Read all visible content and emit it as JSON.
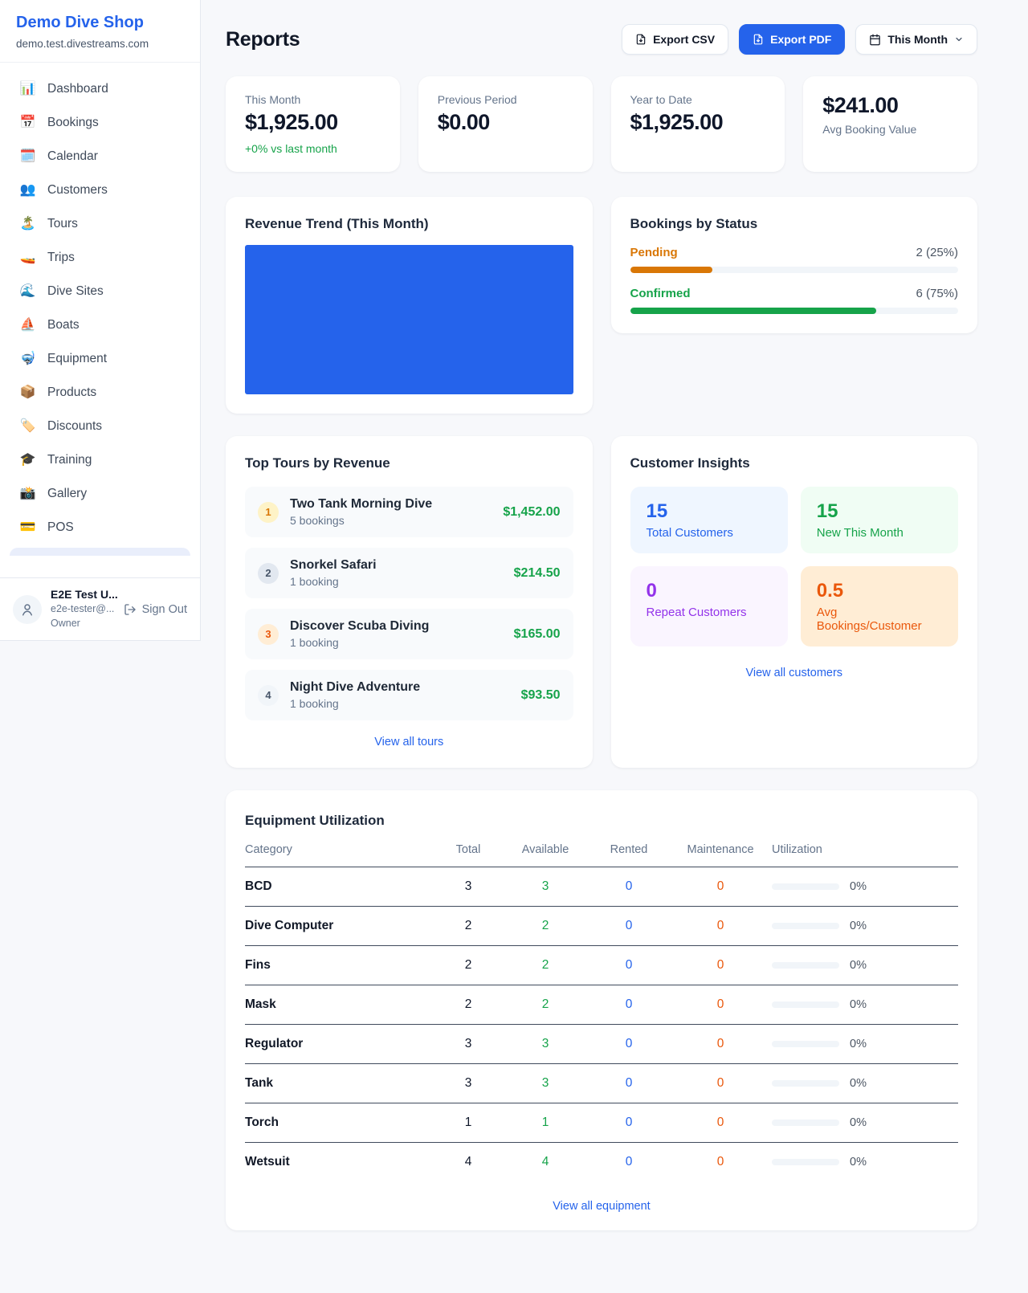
{
  "colors": {
    "accent": "#2563eb",
    "green": "#16a34a",
    "amber": "#d97706",
    "deep_orange": "#ea580c",
    "purple": "#9333ea"
  },
  "sidebar": {
    "brand_title": "Demo Dive Shop",
    "brand_subtitle": "demo.test.divestreams.com",
    "items": [
      {
        "icon": "📊",
        "label": "Dashboard"
      },
      {
        "icon": "📅",
        "label": "Bookings"
      },
      {
        "icon": "🗓️",
        "label": "Calendar"
      },
      {
        "icon": "👥",
        "label": "Customers"
      },
      {
        "icon": "🏝️",
        "label": "Tours"
      },
      {
        "icon": "🚤",
        "label": "Trips"
      },
      {
        "icon": "🌊",
        "label": "Dive Sites"
      },
      {
        "icon": "⛵",
        "label": "Boats"
      },
      {
        "icon": "🤿",
        "label": "Equipment"
      },
      {
        "icon": "📦",
        "label": "Products"
      },
      {
        "icon": "🏷️",
        "label": "Discounts"
      },
      {
        "icon": "🎓",
        "label": "Training"
      },
      {
        "icon": "📸",
        "label": "Gallery"
      },
      {
        "icon": "💳",
        "label": "POS"
      }
    ],
    "user": {
      "name": "E2E Test U...",
      "email": "e2e-tester@...",
      "role": "Owner",
      "sign_out": "Sign Out"
    }
  },
  "header": {
    "title": "Reports",
    "export_csv": "Export CSV",
    "export_pdf": "Export PDF",
    "period": "This Month"
  },
  "stats": {
    "this_month": {
      "label": "This Month",
      "value": "$1,925.00",
      "delta": "+0% vs last month"
    },
    "previous_period": {
      "label": "Previous Period",
      "value": "$0.00"
    },
    "year_to_date": {
      "label": "Year to Date",
      "value": "$1,925.00"
    },
    "avg_booking": {
      "value": "$241.00",
      "label": "Avg Booking Value"
    }
  },
  "revenue_trend": {
    "title": "Revenue Trend (This Month)",
    "bar_color": "#2563eb",
    "fill_pct": 100
  },
  "bookings_by_status": {
    "title": "Bookings by Status",
    "rows": [
      {
        "label": "Pending",
        "value_text": "2 (25%)",
        "pct": 25,
        "color": "#d97706"
      },
      {
        "label": "Confirmed",
        "value_text": "6 (75%)",
        "pct": 75,
        "color": "#16a34a"
      }
    ]
  },
  "top_tours": {
    "title": "Top Tours by Revenue",
    "rows": [
      {
        "rank": "1",
        "name": "Two Tank Morning Dive",
        "bookings": "5 bookings",
        "revenue": "$1,452.00",
        "badge_bg": "#fef3c7",
        "badge_color": "#d97706"
      },
      {
        "rank": "2",
        "name": "Snorkel Safari",
        "bookings": "1 booking",
        "revenue": "$214.50",
        "badge_bg": "#e2e8f0",
        "badge_color": "#475569"
      },
      {
        "rank": "3",
        "name": "Discover Scuba Diving",
        "bookings": "1 booking",
        "revenue": "$165.00",
        "badge_bg": "#ffedd5",
        "badge_color": "#ea580c"
      },
      {
        "rank": "4",
        "name": "Night Dive Adventure",
        "bookings": "1 booking",
        "revenue": "$93.50",
        "badge_bg": "#f1f5f9",
        "badge_color": "#475569"
      }
    ],
    "view_all": "View all tours"
  },
  "customer_insights": {
    "title": "Customer Insights",
    "tiles": [
      {
        "value": "15",
        "label": "Total Customers",
        "bg": "#eff6ff",
        "color": "#2563eb"
      },
      {
        "value": "15",
        "label": "New This Month",
        "bg": "#f0fdf4",
        "color": "#16a34a"
      },
      {
        "value": "0",
        "label": "Repeat Customers",
        "bg": "#faf5ff",
        "color": "#9333ea"
      },
      {
        "value": "0.5",
        "label": "Avg Bookings/Customer",
        "bg": "#ffedd5",
        "color": "#ea580c"
      }
    ],
    "view_all": "View all customers"
  },
  "equipment": {
    "title": "Equipment Utilization",
    "columns": [
      "Category",
      "Total",
      "Available",
      "Rented",
      "Maintenance",
      "Utilization"
    ],
    "colors": {
      "available": "#16a34a",
      "rented": "#2563eb",
      "maintenance": "#ea580c"
    },
    "rows": [
      {
        "category": "BCD",
        "total": "3",
        "available": "3",
        "rented": "0",
        "maintenance": "0",
        "utilization_pct": 0,
        "utilization": "0%"
      },
      {
        "category": "Dive Computer",
        "total": "2",
        "available": "2",
        "rented": "0",
        "maintenance": "0",
        "utilization_pct": 0,
        "utilization": "0%"
      },
      {
        "category": "Fins",
        "total": "2",
        "available": "2",
        "rented": "0",
        "maintenance": "0",
        "utilization_pct": 0,
        "utilization": "0%"
      },
      {
        "category": "Mask",
        "total": "2",
        "available": "2",
        "rented": "0",
        "maintenance": "0",
        "utilization_pct": 0,
        "utilization": "0%"
      },
      {
        "category": "Regulator",
        "total": "3",
        "available": "3",
        "rented": "0",
        "maintenance": "0",
        "utilization_pct": 0,
        "utilization": "0%"
      },
      {
        "category": "Tank",
        "total": "3",
        "available": "3",
        "rented": "0",
        "maintenance": "0",
        "utilization_pct": 0,
        "utilization": "0%"
      },
      {
        "category": "Torch",
        "total": "1",
        "available": "1",
        "rented": "0",
        "maintenance": "0",
        "utilization_pct": 0,
        "utilization": "0%"
      },
      {
        "category": "Wetsuit",
        "total": "4",
        "available": "4",
        "rented": "0",
        "maintenance": "0",
        "utilization_pct": 0,
        "utilization": "0%"
      }
    ],
    "view_all": "View all equipment"
  }
}
